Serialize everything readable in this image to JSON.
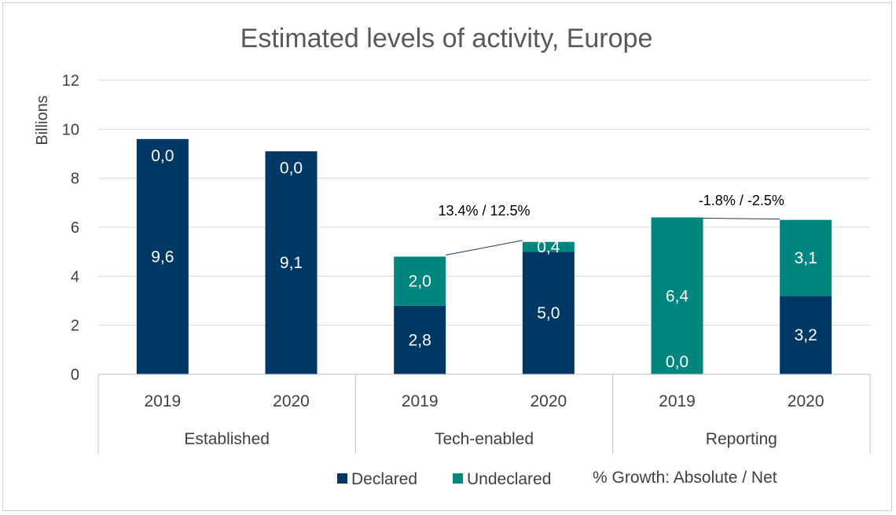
{
  "chart_data": {
    "type": "bar",
    "stacked": true,
    "title": "Estimated levels of activity, Europe",
    "ylabel": "Billions",
    "xlabel": "",
    "ylim": [
      0,
      12
    ],
    "yticks": [
      "0",
      "2",
      "4",
      "6",
      "8",
      "10",
      "12"
    ],
    "grid": true,
    "groups": [
      "Established",
      "Tech-enabled",
      "Reporting"
    ],
    "categories": [
      "2019",
      "2020",
      "2019",
      "2020",
      "2019",
      "2020"
    ],
    "series": [
      {
        "name": "Declared",
        "color": "#003865",
        "values": [
          9.6,
          9.1,
          2.8,
          5.0,
          0.0,
          3.2
        ],
        "labels": [
          "9,6",
          "9,1",
          "2,8",
          "5,0",
          "0,0",
          "3,2"
        ]
      },
      {
        "name": "Undeclared",
        "color": "#00857f",
        "values": [
          0.0,
          0.0,
          2.0,
          0.4,
          6.4,
          3.1
        ],
        "labels": [
          "0,0",
          "0,0",
          "2,0",
          "0,4",
          "6,4",
          "3,1"
        ]
      }
    ],
    "annotations": [
      {
        "text": "13.4% / 12.5%",
        "group": "Tech-enabled"
      },
      {
        "text": "-1.8% / -2.5%",
        "group": "Reporting"
      }
    ],
    "legend": {
      "position": "bottom",
      "items": [
        "Declared",
        "Undeclared"
      ],
      "note": "% Growth: Absolute / Net"
    }
  }
}
